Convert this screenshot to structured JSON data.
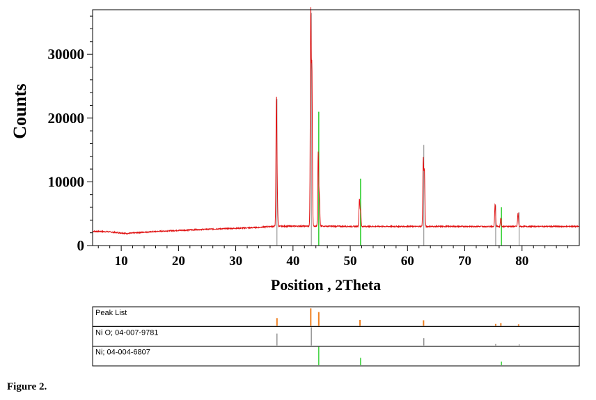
{
  "chart_data": {
    "type": "line",
    "xlabel": "Position , 2Theta",
    "ylabel": "Counts",
    "xlim": [
      5,
      90
    ],
    "ylim": [
      0,
      37000
    ],
    "xticks": [
      10,
      20,
      30,
      40,
      50,
      60,
      70,
      80
    ],
    "yticks": [
      0,
      10000,
      20000,
      30000
    ],
    "xtick_labels": [
      "10",
      "20",
      "30",
      "40",
      "50",
      "60",
      "70",
      "80"
    ],
    "ytick_labels": [
      "0",
      "10000",
      "20000",
      "30000"
    ],
    "colors": {
      "pattern": "#e01010",
      "reference_gray": "#808080",
      "reference_green": "#22cc22",
      "peak_list": "#f08020",
      "frame": "#000000"
    },
    "baseline": [
      [
        5,
        2250
      ],
      [
        8,
        2150
      ],
      [
        11,
        1900
      ],
      [
        14,
        2100
      ],
      [
        18,
        2300
      ],
      [
        22,
        2450
      ],
      [
        26,
        2600
      ],
      [
        30,
        2700
      ],
      [
        34,
        2850
      ],
      [
        36,
        3000
      ],
      [
        40,
        3050
      ],
      [
        45,
        3050
      ],
      [
        50,
        3000
      ],
      [
        55,
        3000
      ],
      [
        60,
        3000
      ],
      [
        65,
        3000
      ],
      [
        70,
        3000
      ],
      [
        75,
        3000
      ],
      [
        80,
        3000
      ],
      [
        85,
        3000
      ],
      [
        90,
        3000
      ]
    ],
    "peaks": [
      {
        "x": 37.1,
        "y": 22800
      },
      {
        "x": 37.25,
        "y": 7200
      },
      {
        "x": 43.1,
        "y": 36500
      },
      {
        "x": 43.3,
        "y": 27300
      },
      {
        "x": 44.4,
        "y": 14500
      },
      {
        "x": 44.6,
        "y": 7500
      },
      {
        "x": 51.6,
        "y": 7300
      },
      {
        "x": 51.8,
        "y": 5300
      },
      {
        "x": 62.75,
        "y": 13400
      },
      {
        "x": 62.95,
        "y": 11600
      },
      {
        "x": 75.3,
        "y": 6600
      },
      {
        "x": 76.3,
        "y": 4400
      },
      {
        "x": 79.3,
        "y": 5100
      }
    ],
    "reference_lines": [
      {
        "x": 37.2,
        "y": 23000,
        "color": "gray"
      },
      {
        "x": 43.2,
        "y": 36500,
        "color": "gray"
      },
      {
        "x": 62.85,
        "y": 15800,
        "color": "gray"
      },
      {
        "x": 75.4,
        "y": 6300,
        "color": "gray"
      },
      {
        "x": 79.5,
        "y": 5200,
        "color": "gray"
      },
      {
        "x": 44.5,
        "y": 21000,
        "color": "green"
      },
      {
        "x": 51.8,
        "y": 10500,
        "color": "green"
      },
      {
        "x": 76.4,
        "y": 6000,
        "color": "green"
      }
    ]
  },
  "peak_panels": [
    {
      "label": "Peak List",
      "color": "#f08020",
      "markers": [
        {
          "x": 37.2,
          "h": 0.42
        },
        {
          "x": 43.1,
          "h": 0.95
        },
        {
          "x": 44.5,
          "h": 0.75
        },
        {
          "x": 51.7,
          "h": 0.32
        },
        {
          "x": 62.8,
          "h": 0.3
        },
        {
          "x": 75.4,
          "h": 0.1
        },
        {
          "x": 76.3,
          "h": 0.15
        },
        {
          "x": 79.4,
          "h": 0.08
        }
      ]
    },
    {
      "label": "Ni O; 04-007-9781",
      "color": "#808080",
      "markers": [
        {
          "x": 37.2,
          "h": 0.65
        },
        {
          "x": 43.2,
          "h": 1.0
        },
        {
          "x": 62.85,
          "h": 0.4
        },
        {
          "x": 75.4,
          "h": 0.08
        },
        {
          "x": 79.5,
          "h": 0.06
        }
      ]
    },
    {
      "label": "Ni; 04-004-6807",
      "color": "#22cc22",
      "markers": [
        {
          "x": 44.5,
          "h": 1.0
        },
        {
          "x": 51.8,
          "h": 0.4
        },
        {
          "x": 76.4,
          "h": 0.2
        }
      ]
    }
  ],
  "caption": "Figure 2."
}
